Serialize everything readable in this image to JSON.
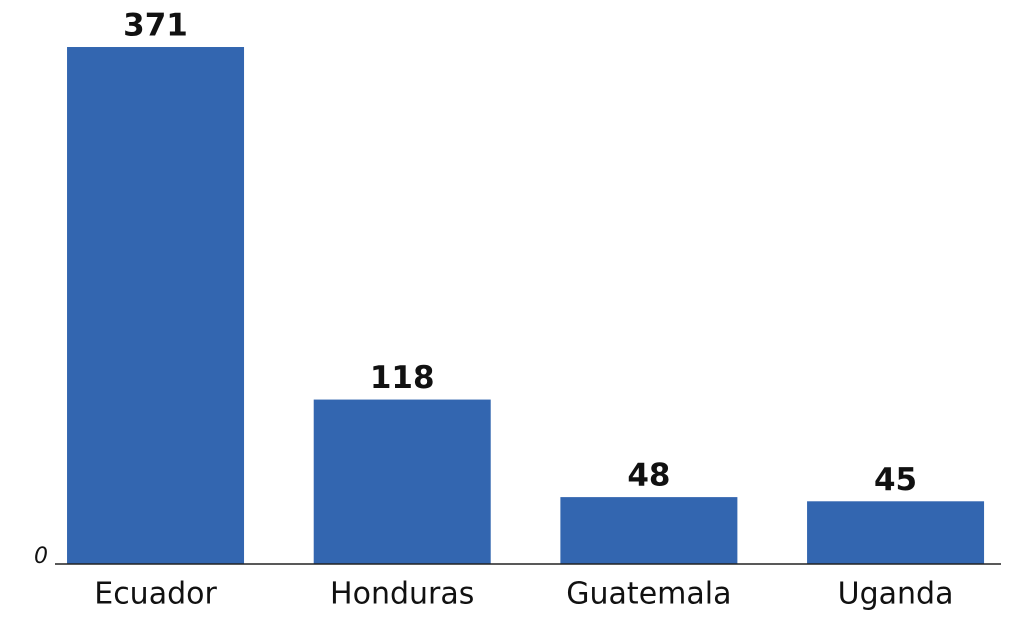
{
  "chart_data": {
    "type": "bar",
    "categories": [
      "Ecuador",
      "Honduras",
      "Guatemala",
      "Uganda"
    ],
    "values": [
      371,
      118,
      48,
      45
    ],
    "color": "#3366b0",
    "ylim": [
      0,
      400
    ],
    "yticks": [
      0
    ],
    "grid": false
  }
}
